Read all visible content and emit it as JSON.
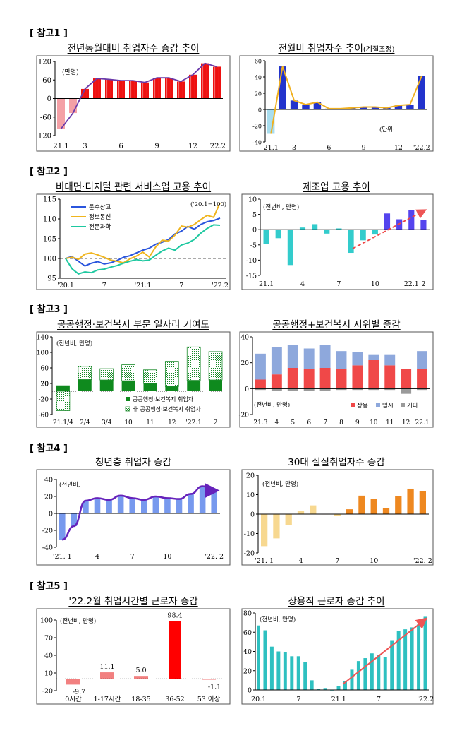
{
  "sections": [
    {
      "label": "[ 참고1 ]"
    },
    {
      "label": "[ 참고2 ]"
    },
    {
      "label": "[ 참고3 ]"
    },
    {
      "label": "[ 참고4 ]"
    },
    {
      "label": "[ 참고5 ]"
    }
  ],
  "chart_data": [
    {
      "id": "c1",
      "type": "bar+line",
      "title": "전년동월대비 취업자수 증감 추이",
      "unit_label": "(만명)",
      "ylim": [
        -120,
        120
      ],
      "yticks": [
        "120",
        "60",
        "0",
        "-60",
        "-120"
      ],
      "xlabels": [
        {
          "i": 0,
          "t": "21.1"
        },
        {
          "i": 2,
          "t": "3"
        },
        {
          "i": 5,
          "t": "6"
        },
        {
          "i": 8,
          "t": "9"
        },
        {
          "i": 11,
          "t": "12"
        },
        {
          "i": 13,
          "t": "'22.2"
        }
      ],
      "values": [
        -98,
        -47,
        31,
        65,
        62,
        58,
        58,
        52,
        67,
        67,
        55,
        77,
        114,
        103
      ],
      "colors": {
        "neg": "#f4a0a6",
        "pos": "#ee1111",
        "line": "#6a3aaa"
      }
    },
    {
      "id": "c2",
      "type": "bar+line",
      "title": "전월비 취업자수 추이",
      "title_suffix": "(계절조정)",
      "unit_label": "(단위:",
      "ylim": [
        -40,
        60
      ],
      "yticks": [
        "60",
        "40",
        "20",
        "0",
        "-20",
        "-40"
      ],
      "xlabels": [
        {
          "i": 0,
          "t": "21.1"
        },
        {
          "i": 2,
          "t": "3"
        },
        {
          "i": 5,
          "t": "6"
        },
        {
          "i": 8,
          "t": "9"
        },
        {
          "i": 11,
          "t": "12"
        },
        {
          "i": 13,
          "t": "'22.2"
        }
      ],
      "values": [
        -30,
        53,
        11,
        6,
        9,
        1,
        1,
        2,
        3,
        3,
        2,
        5,
        6,
        41
      ],
      "colors": {
        "neg": "#a8ddee",
        "pos": "#2233cc",
        "line": "#f0b020"
      }
    },
    {
      "id": "c3",
      "type": "line",
      "title": "비대면·디지털 관련 서비스업 고용 추이",
      "annotation": "('20.1=100)",
      "ylim": [
        95,
        115
      ],
      "yticks": [
        "115",
        "110",
        "105",
        "100",
        "95"
      ],
      "xlabels": [
        {
          "i": 0,
          "t": "'20.1"
        },
        {
          "i": 6,
          "t": "7"
        },
        {
          "i": 12,
          "t": "'21.1"
        },
        {
          "i": 18,
          "t": "7"
        },
        {
          "i": 24,
          "t": "'22.2"
        }
      ],
      "baseline": 100,
      "series": [
        {
          "name": "운수창고",
          "color": "#2a55dd",
          "values": [
            100,
            100.5,
            99.3,
            98.1,
            98.8,
            99.2,
            98.6,
            98.9,
            99.5,
            100.3,
            100.7,
            101.4,
            102.1,
            102.6,
            103.6,
            104.1,
            104.8,
            106.2,
            106.9,
            108.1,
            107.4,
            108.6,
            109.3,
            109.6,
            110.2
          ]
        },
        {
          "name": "정보통신",
          "color": "#f0b51e",
          "values": [
            100,
            100.3,
            99.8,
            101.1,
            101.4,
            100.9,
            100.3,
            99.6,
            99.3,
            98.9,
            99.9,
            100.6,
            101.6,
            100.4,
            102.9,
            104.6,
            104.4,
            105.9,
            108.2,
            107.9,
            108.6,
            109.8,
            110.9,
            110.4,
            114.1
          ]
        },
        {
          "name": "전문과학",
          "color": "#1ec8a0",
          "values": [
            100,
            97.4,
            96.1,
            96.6,
            96.4,
            97.1,
            97.3,
            97.8,
            98.2,
            98.8,
            99.3,
            99.7,
            99.4,
            99.6,
            100.8,
            101.9,
            102.6,
            102.1,
            103.4,
            103.9,
            104.8,
            106.4,
            107.6,
            108.5,
            108.4
          ]
        }
      ]
    },
    {
      "id": "c4",
      "type": "bar",
      "title": "제조업 고용 추이",
      "unit_label": "(전년비, 만명)",
      "ylim": [
        -15,
        10
      ],
      "yticks": [
        "10",
        "5",
        "0",
        "-5",
        "-10",
        "-15"
      ],
      "xlabels": [
        {
          "i": 0,
          "t": "21.1"
        },
        {
          "i": 3,
          "t": "4"
        },
        {
          "i": 6,
          "t": "7"
        },
        {
          "i": 9,
          "t": "10"
        },
        {
          "i": 12,
          "t": "22.1"
        },
        {
          "i": 13,
          "t": "2"
        }
      ],
      "values": [
        -4.6,
        -2.8,
        -11.6,
        0.7,
        1.8,
        -1.3,
        0.4,
        -7.6,
        -3.5,
        -1.6,
        5.3,
        3.4,
        6.5,
        3.2
      ],
      "colors": {
        "neg": "#33cccc",
        "pos": "#5544ee",
        "trend": "#ee4444"
      }
    },
    {
      "id": "c5",
      "type": "stacked-bar",
      "title": "공공행정·보건복지 부문 일자리 기여도",
      "unit_label": "(전년비, 만명)",
      "ylim": [
        -60,
        140
      ],
      "yticks": [
        "140",
        "100",
        "60",
        "20",
        "-20",
        "-60"
      ],
      "extra_tick": "20",
      "categories": [
        "21.1/4",
        "2/4",
        "3/4",
        "10",
        "11",
        "12",
        "'22.1",
        "2"
      ],
      "series": [
        {
          "name": "공공행정·보건복지 취업자",
          "color": "#0f8a1e",
          "values": [
            15,
            30,
            29,
            27,
            20,
            12,
            28,
            29
          ]
        },
        {
          "name": "非 공공행정·보건복지 취업자",
          "color": "#ffffff",
          "values": [
            -50,
            34,
            29,
            41,
            35,
            65,
            86,
            73
          ]
        }
      ]
    },
    {
      "id": "c6",
      "type": "stacked-bar",
      "title": "공공행정+보건복지 지위별 증감",
      "unit_label": "(전년비, 만명)",
      "ylim": [
        -20,
        40
      ],
      "yticks": [
        "40",
        "20",
        "0",
        "-20"
      ],
      "categories": [
        "21.3",
        "4",
        "5",
        "6",
        "7",
        "8",
        "9",
        "10",
        "11",
        "12",
        "22.1"
      ],
      "series": [
        {
          "name": "상용",
          "color": "#f04848",
          "values": [
            7,
            11,
            16,
            15,
            16,
            15,
            18,
            22,
            18,
            15,
            15
          ]
        },
        {
          "name": "임시",
          "color": "#8ea8dc",
          "values": [
            20,
            21,
            18,
            16,
            18,
            14,
            10,
            4,
            8,
            0,
            14
          ]
        },
        {
          "name": "기타",
          "color": "#9a9a9a",
          "values": [
            -1,
            -2,
            -2,
            -2,
            -2,
            -1,
            -1,
            -1,
            -1,
            -4,
            -1
          ]
        }
      ]
    },
    {
      "id": "c7",
      "type": "bar+line",
      "title": "청년층 취업자 증감",
      "unit_label": "(전년비,",
      "ylim": [
        -40,
        40
      ],
      "yticks": [
        "40",
        "20",
        "0",
        "-20",
        "-40"
      ],
      "xlabels": [
        {
          "i": 0,
          "t": "'21. 1"
        },
        {
          "i": 3,
          "t": "4"
        },
        {
          "i": 6,
          "t": "7"
        },
        {
          "i": 9,
          "t": "10"
        },
        {
          "i": 13,
          "t": "'22. 2"
        }
      ],
      "values": [
        -31,
        -15,
        15,
        18,
        16,
        21,
        18,
        16,
        20,
        18,
        17,
        23,
        32,
        27
      ],
      "colors": {
        "bar": "#7799ee",
        "line": "#6622bb"
      }
    },
    {
      "id": "c8",
      "type": "bar",
      "title": "30대 실질취업자수 증감",
      "unit_label": "(전년비, 만명)",
      "ylim": [
        -20,
        20
      ],
      "yticks": [
        "20",
        "10",
        "0",
        "-10",
        "-20"
      ],
      "xlabels": [
        {
          "i": 0,
          "t": "'21. 1"
        },
        {
          "i": 3,
          "t": "4"
        },
        {
          "i": 6,
          "t": "7"
        },
        {
          "i": 9,
          "t": "10"
        },
        {
          "i": 13,
          "t": "'22. 2"
        }
      ],
      "values": [
        -16.5,
        -12.5,
        -5.5,
        1.5,
        4.5,
        0.1,
        -0.9,
        2.5,
        9.5,
        7.8,
        3.0,
        9.2,
        13.1,
        12.0
      ],
      "colors": {
        "neg": "#f7d890",
        "pos": "#ee8820"
      }
    },
    {
      "id": "c9",
      "type": "bar",
      "title": "'22.2월 취업시간별 근로자 증감",
      "unit_label": "(전년비, 만명)",
      "ylim": [
        -20,
        100
      ],
      "yticks": [
        "100",
        "70",
        "40",
        "10",
        "-20"
      ],
      "categories": [
        "0시간",
        "1-17시간",
        "18-35",
        "36-52",
        "53 이상"
      ],
      "values": [
        -9.7,
        11.1,
        5.0,
        98.4,
        -1.1
      ],
      "labels": [
        "-9.7",
        "11.1",
        "5.0",
        "98.4",
        "-1.1"
      ],
      "colors": {
        "light": "#f28080",
        "main": "#ff0000"
      }
    },
    {
      "id": "c10",
      "type": "bar",
      "title": "상용직 근로자 증감 추이",
      "unit_label": "(전년비, 만명)",
      "ylim": [
        0,
        80
      ],
      "yticks": [
        "80",
        "60",
        "40",
        "20",
        "0"
      ],
      "xlabels": [
        {
          "i": 0,
          "t": "20.1"
        },
        {
          "i": 6,
          "t": "7"
        },
        {
          "i": 12,
          "t": "21.1"
        },
        {
          "i": 18,
          "t": "7"
        },
        {
          "i": 25,
          "t": "'22.2"
        }
      ],
      "values": [
        67,
        62,
        45,
        40,
        39,
        35,
        35,
        29,
        10,
        1,
        2,
        0,
        4,
        9,
        21,
        30,
        33,
        38,
        36,
        34,
        51,
        61,
        63,
        65,
        68,
        76
      ],
      "colors": {
        "bar": "#2ec0c0",
        "trend": "#ee5555"
      }
    }
  ]
}
